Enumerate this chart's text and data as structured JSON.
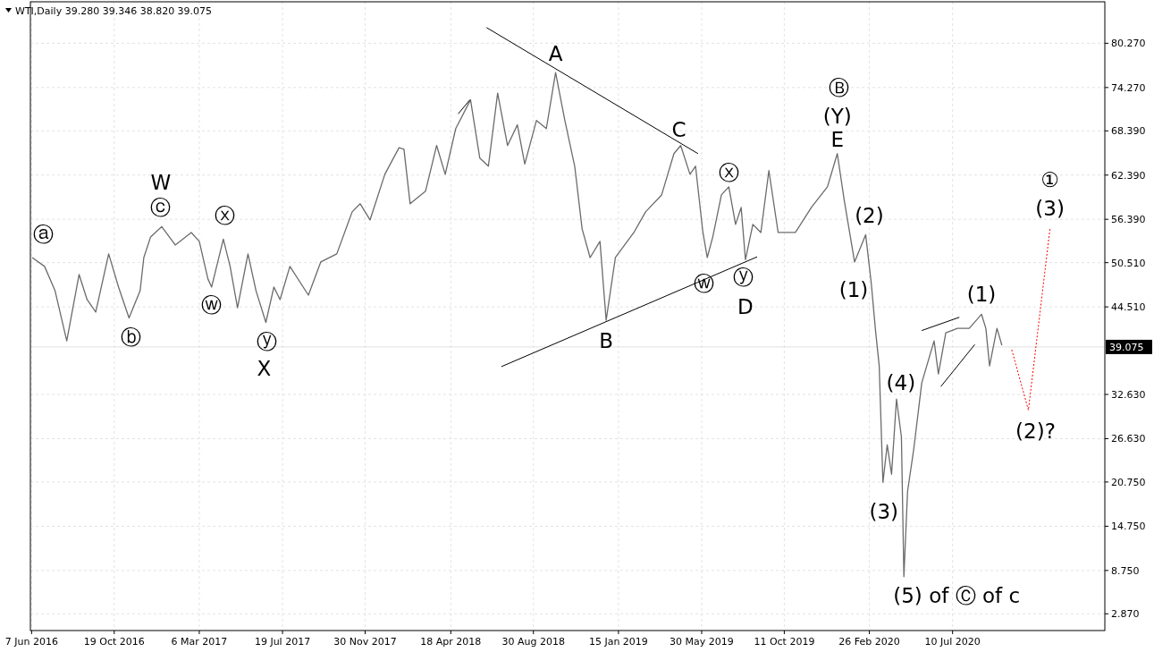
{
  "chart_data": {
    "type": "line",
    "title": "WTI,Daily  39.280 39.346 38.820 39.075",
    "xlim": [
      "2016-06-05",
      "2021-03-14"
    ],
    "ylim": [
      0.6,
      85.9
    ],
    "xticks": [
      {
        "value": "2016-06-07",
        "label": "7 Jun 2016"
      },
      {
        "value": "2016-10-19",
        "label": "19 Oct 2016"
      },
      {
        "value": "2017-03-06",
        "label": "6 Mar 2017"
      },
      {
        "value": "2017-07-19",
        "label": "19 Jul 2017"
      },
      {
        "value": "2017-11-30",
        "label": "30 Nov 2017"
      },
      {
        "value": "2018-04-18",
        "label": "18 Apr 2018"
      },
      {
        "value": "2018-08-30",
        "label": "30 Aug 2018"
      },
      {
        "value": "2019-01-15",
        "label": "15 Jan 2019"
      },
      {
        "value": "2019-05-30",
        "label": "30 May 2019"
      },
      {
        "value": "2019-10-11",
        "label": "11 Oct 2019"
      },
      {
        "value": "2020-02-26",
        "label": "26 Feb 2020"
      },
      {
        "value": "2020-07-10",
        "label": "10 Jul 2020"
      }
    ],
    "yticks": [
      {
        "value": 2.87,
        "label": "2.870"
      },
      {
        "value": 8.75,
        "label": "8.750"
      },
      {
        "value": 14.75,
        "label": "14.750"
      },
      {
        "value": 20.75,
        "label": "20.750"
      },
      {
        "value": 26.63,
        "label": "26.630"
      },
      {
        "value": 32.63,
        "label": "32.630"
      },
      {
        "value": 44.51,
        "label": "44.510"
      },
      {
        "value": 50.51,
        "label": "50.510"
      },
      {
        "value": 56.39,
        "label": "56.390"
      },
      {
        "value": 62.39,
        "label": "62.390"
      },
      {
        "value": 68.39,
        "label": "68.390"
      },
      {
        "value": 74.27,
        "label": "74.270"
      },
      {
        "value": 80.27,
        "label": "80.270"
      }
    ],
    "grid": true,
    "ref_lines": [
      {
        "axis": "y",
        "value": 39.075,
        "label": "39.075",
        "color": "#e0e0e0"
      }
    ],
    "series": [
      {
        "color": "#6b6b6b",
        "x": [
          "2016-06-08",
          "2016-06-28",
          "2016-07-15",
          "2016-08-03",
          "2016-08-23",
          "2016-09-05",
          "2016-09-19",
          "2016-10-10",
          "2016-10-26",
          "2016-11-12",
          "2016-11-30",
          "2016-12-06",
          "2016-12-17",
          "2017-01-04",
          "2017-01-26",
          "2017-02-21",
          "2017-03-06",
          "2017-03-20",
          "2017-03-26",
          "2017-04-14",
          "2017-04-25",
          "2017-05-07",
          "2017-05-24",
          "2017-06-06",
          "2017-06-22",
          "2017-07-05",
          "2017-07-15",
          "2017-07-31",
          "2017-08-30",
          "2017-09-19",
          "2017-10-15",
          "2017-11-09",
          "2017-11-22",
          "2017-12-08",
          "2018-01-01",
          "2018-01-24",
          "2018-02-01",
          "2018-02-11",
          "2018-03-08",
          "2018-03-26",
          "2018-04-09",
          "2018-04-26",
          "2018-05-20",
          "2018-06-04",
          "2018-06-18",
          "2018-07-03",
          "2018-07-19",
          "2018-08-04",
          "2018-08-16",
          "2018-09-04",
          "2018-09-20",
          "2018-10-05",
          "2018-10-20",
          "2018-11-05",
          "2018-11-17",
          "2018-11-30",
          "2018-12-16",
          "2018-12-26",
          "2019-01-10",
          "2019-02-09",
          "2019-02-28",
          "2019-03-26",
          "2019-04-15",
          "2019-04-26",
          "2019-05-11",
          "2019-05-20",
          "2019-06-01",
          "2019-06-08",
          "2019-06-17",
          "2019-07-01",
          "2019-07-13",
          "2019-07-24",
          "2019-08-02",
          "2019-08-09",
          "2019-08-21",
          "2019-09-03",
          "2019-09-16",
          "2019-10-01",
          "2019-10-29",
          "2019-11-24",
          "2019-12-20",
          "2020-01-05",
          "2020-01-16",
          "2020-02-02",
          "2020-02-20",
          "2020-02-29",
          "2020-03-07",
          "2020-03-13",
          "2020-03-19",
          "2020-03-26",
          "2020-04-02",
          "2020-04-10",
          "2020-04-18",
          "2020-04-22",
          "2020-04-28",
          "2020-05-08",
          "2020-05-21",
          "2020-06-10",
          "2020-06-17",
          "2020-06-29",
          "2020-07-18",
          "2020-08-06",
          "2020-08-26",
          "2020-09-02",
          "2020-09-08",
          "2020-09-20",
          "2020-09-28"
        ],
        "values": [
          51.2,
          50.0,
          46.7,
          39.9,
          48.9,
          45.5,
          43.8,
          51.7,
          47.2,
          43.0,
          46.7,
          51.2,
          54.0,
          55.4,
          52.9,
          54.6,
          53.4,
          48.3,
          47.2,
          53.7,
          50.0,
          44.4,
          51.7,
          46.7,
          42.4,
          47.2,
          45.5,
          50.0,
          46.1,
          50.6,
          51.7,
          57.4,
          58.5,
          56.3,
          62.5,
          66.1,
          65.9,
          58.5,
          60.2,
          66.4,
          62.5,
          68.7,
          72.6,
          64.7,
          63.6,
          73.5,
          66.4,
          69.2,
          63.9,
          69.8,
          68.7,
          76.3,
          69.8,
          63.6,
          55.1,
          51.2,
          53.4,
          42.7,
          51.2,
          54.6,
          57.4,
          59.7,
          65.3,
          66.4,
          62.5,
          63.6,
          54.6,
          51.2,
          54.0,
          59.7,
          60.8,
          55.7,
          58.0,
          50.9,
          55.7,
          54.6,
          63.0,
          54.6,
          54.6,
          58.0,
          60.8,
          65.3,
          59.1,
          50.6,
          54.3,
          47.8,
          41.3,
          36.5,
          20.7,
          25.8,
          21.8,
          32.0,
          26.9,
          7.9,
          19.5,
          25.2,
          34.2,
          39.9,
          35.4,
          41.0,
          41.6,
          41.6,
          43.5,
          41.6,
          36.5,
          41.6,
          39.3
        ]
      },
      {
        "color": "#000000",
        "x": [
          "2018-06-15",
          "2019-05-24"
        ],
        "values": [
          82.4,
          65.3
        ]
      },
      {
        "color": "#000000",
        "x": [
          "2018-07-09",
          "2019-08-28"
        ],
        "values": [
          36.4,
          51.3
        ]
      },
      {
        "color": "#000000",
        "x": [
          "2018-04-30",
          "2018-05-19"
        ],
        "values": [
          70.7,
          72.6
        ]
      },
      {
        "color": "#000000",
        "x": [
          "2020-05-21",
          "2020-07-21"
        ],
        "values": [
          41.3,
          43.1
        ]
      },
      {
        "color": "#000000",
        "x": [
          "2020-06-21",
          "2020-08-15"
        ],
        "values": [
          33.7,
          39.4
        ]
      },
      {
        "color": "#ff0000",
        "line_style": "dotted",
        "x": [
          "2020-10-14",
          "2020-11-10",
          "2020-12-15"
        ],
        "values": [
          38.7,
          30.5,
          55.1
        ]
      }
    ],
    "annotations": [
      {
        "text": "ⓐ",
        "x": "2016-06-08",
        "y": 51.2
      },
      {
        "text": "ⓑ",
        "x": "2016-11-12",
        "y": 43.0
      },
      {
        "text": "W",
        "x": "2017-01-04",
        "y": 55.4
      },
      {
        "text": "ⓒ",
        "x": "2017-01-04",
        "y": 55.4
      },
      {
        "text": "ⓧ",
        "x": "2017-04-14",
        "y": 53.7
      },
      {
        "text": "ⓦ",
        "x": "2017-03-26",
        "y": 47.2
      },
      {
        "text": "ⓨ",
        "x": "2017-06-22",
        "y": 42.4
      },
      {
        "text": "X",
        "x": "2017-06-22",
        "y": 42.4
      },
      {
        "text": "A",
        "x": "2018-10-05",
        "y": 76.3
      },
      {
        "text": "B",
        "x": "2018-12-26",
        "y": 42.7
      },
      {
        "text": "C",
        "x": "2019-04-26",
        "y": 66.4
      },
      {
        "text": "ⓧ",
        "x": "2019-07-13",
        "y": 60.8
      },
      {
        "text": "ⓦ",
        "x": "2019-06-08",
        "y": 51.2
      },
      {
        "text": "ⓨ",
        "x": "2019-08-09",
        "y": 50.9
      },
      {
        "text": "D",
        "x": "2019-08-09",
        "y": 50.9
      },
      {
        "text": "Ⓑ",
        "x": "2020-01-05",
        "y": 65.3
      },
      {
        "text": "(Y)",
        "x": "2020-01-05",
        "y": 65.3
      },
      {
        "text": "E",
        "x": "2020-01-05",
        "y": 65.3
      },
      {
        "text": "(2)",
        "x": "2020-02-20",
        "y": 54.3
      },
      {
        "text": "(1)",
        "x": "2020-02-02",
        "y": 50.6
      },
      {
        "text": "(4)",
        "x": "2020-04-10",
        "y": 32.0
      },
      {
        "text": "(3)",
        "x": "2020-03-19",
        "y": 20.7
      },
      {
        "text": "(5) of Ⓒ of c",
        "x": "2020-04-22",
        "y": 7.9
      },
      {
        "text": "(1)",
        "x": "2020-08-26",
        "y": 43.5
      },
      {
        "text": "(2)?",
        "x": "2020-11-10",
        "y": 30.5
      },
      {
        "text": "①",
        "x": "2020-12-15",
        "y": 55.1
      },
      {
        "text": "(3)",
        "x": "2020-12-15",
        "y": 55.1
      }
    ]
  }
}
